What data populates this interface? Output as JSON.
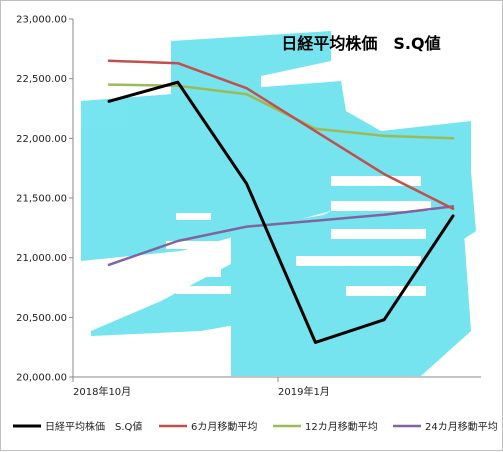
{
  "chart_data": {
    "type": "line",
    "title": "日経平均株価　S.Q値",
    "x": [
      "2018/10",
      "2018/11",
      "2018/12",
      "2019/1",
      "2019/2",
      "2019/3"
    ],
    "x_tick_labels": [
      "2018年10月",
      "2019年1月"
    ],
    "y_tick_labels": [
      "20,000.00",
      "20,500.00",
      "21,000.00",
      "21,500.00",
      "22,000.00",
      "22,500.00",
      "23,000.00"
    ],
    "ylim": [
      20000,
      23000
    ],
    "grid": false,
    "legend_position": "bottom",
    "series": [
      {
        "name": "日経平均株価　S.Q値",
        "color": "#000000",
        "values": [
          22310,
          22470,
          21620,
          20290,
          20480,
          21350
        ]
      },
      {
        "name": "6カ月移動平均",
        "color": "#c0504d",
        "values": [
          22650,
          22630,
          22420,
          22060,
          21700,
          21410
        ]
      },
      {
        "name": "12カ月移動平均",
        "color": "#9bbb59",
        "values": [
          22450,
          22440,
          22370,
          22080,
          22020,
          22000
        ]
      },
      {
        "name": "24カ月移動平均",
        "color": "#8064a2",
        "values": [
          20940,
          21140,
          21260,
          21310,
          21360,
          21430
        ]
      }
    ]
  },
  "watermark": {
    "color": "#5ee0ec",
    "char": "亀"
  }
}
